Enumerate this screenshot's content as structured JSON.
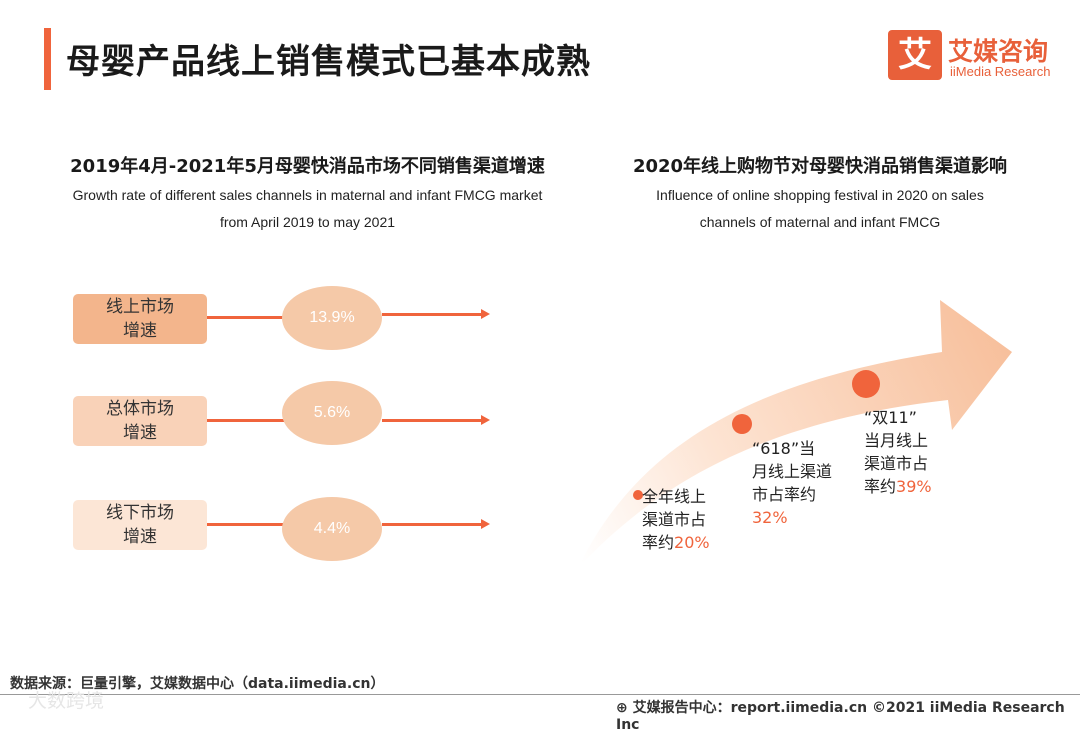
{
  "header": {
    "title": "母婴产品线上销售模式已基本成熟",
    "logo_mark": "艾",
    "logo_cn": "艾媒咨询",
    "logo_en": "iiMedia Research"
  },
  "left_section": {
    "title_cn": "2019年4月-2021年5月母婴快消品市场不同销售渠道增速",
    "subtitle_en_1": "Growth rate of different sales channels in maternal and infant FMCG market",
    "subtitle_en_2": "from April 2019 to may 2021"
  },
  "right_section": {
    "title_cn": "2020年线上购物节对母婴快消品销售渠道影响",
    "subtitle_en_1": "Influence of online shopping festival in 2020 on sales",
    "subtitle_en_2": "channels of maternal and infant FMCG"
  },
  "chart_data": [
    {
      "type": "table",
      "title": "2019年4月-2021年5月母婴快消品市场不同销售渠道增速",
      "rows": [
        {
          "label_1": "线上市场",
          "label_2": "增速",
          "value": 13.9,
          "display": "13.9%",
          "color": "#f3b58c"
        },
        {
          "label_1": "总体市场",
          "label_2": "增速",
          "value": 5.6,
          "display": "5.6%",
          "color": "#f9d2b8"
        },
        {
          "label_1": "线下市场",
          "label_2": "增速",
          "value": 4.4,
          "display": "4.4%",
          "color": "#fce6d6"
        }
      ]
    },
    {
      "type": "scatter",
      "title": "2020年线上购物节对母婴快消品销售渠道影响",
      "points": [
        {
          "lines": [
            "全年线上",
            "渠道市占"
          ],
          "prefix": "率约",
          "value": 20,
          "display": "20%"
        },
        {
          "lines": [
            "“618”当",
            "月线上渠道",
            "市占率约"
          ],
          "prefix": "",
          "value": 32,
          "display": "32%"
        },
        {
          "lines": [
            "“双11”",
            "当月线上",
            "渠道市占"
          ],
          "prefix": "率约",
          "value": 39,
          "display": "39%"
        }
      ]
    }
  ],
  "footer": {
    "source": "数据来源：巨量引擎，艾媒数据中心（data.iimedia.cn）",
    "right_text": "⊕ 艾媒报告中心：report.iimedia.cn  ©2021  iiMedia Research  Inc",
    "watermark": "大数跨境"
  },
  "colors": {
    "accent": "#f0643c",
    "oval": "#f5c9a8"
  }
}
